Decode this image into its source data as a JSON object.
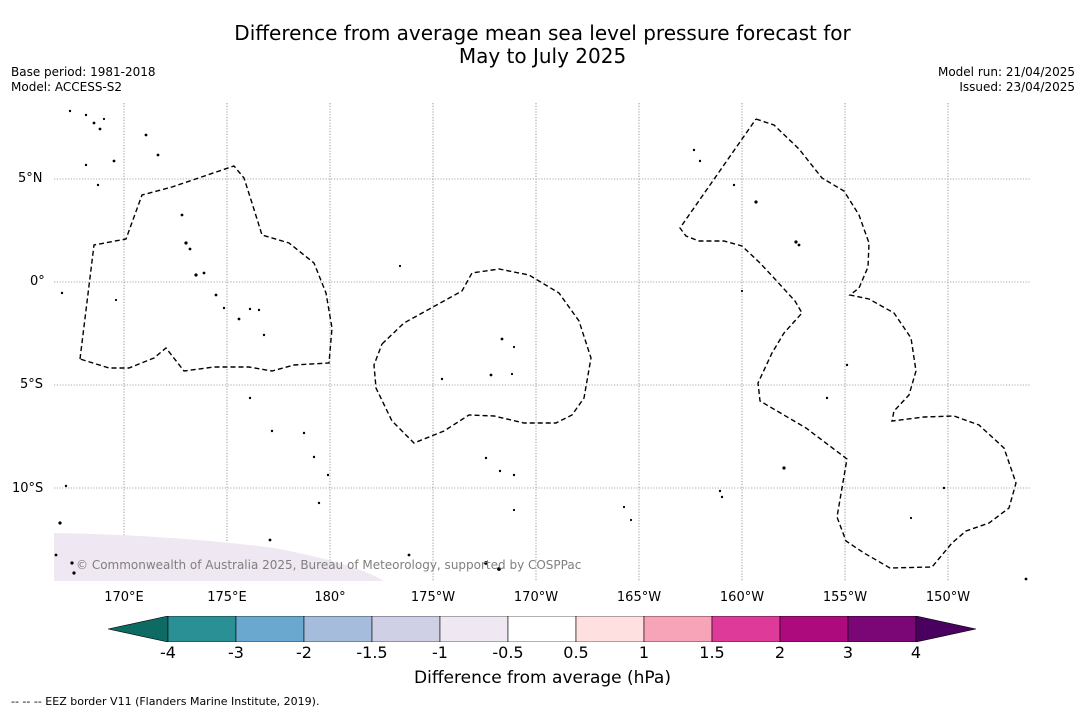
{
  "title_line1": "Difference from average mean sea level pressure forecast for",
  "title_line2": "May to July 2025",
  "base_period": "Base period: 1981-2018",
  "model": "Model: ACCESS-S2",
  "model_run": "Model run: 21/04/2025",
  "issued": "Issued: 23/04/2025",
  "lat_labels": [
    "5°N",
    "0°",
    "5°S",
    "10°S"
  ],
  "lon_labels": [
    "170°E",
    "175°E",
    "180°",
    "175°W",
    "170°W",
    "165°W",
    "160°W",
    "155°W",
    "150°W"
  ],
  "copyright": "© Commonwealth of Australia 2025, Bureau of Meteorology, supported by COSPPac",
  "colorbar": {
    "label": "Difference from average (hPa)",
    "ticks": [
      "-4",
      "-3",
      "-2",
      "-1.5",
      "-1",
      "-0.5",
      "0.5",
      "1",
      "1.5",
      "2",
      "3",
      "4"
    ],
    "colors": [
      "#0e6b63",
      "#2b8f96",
      "#6aa8d0",
      "#a6bcdc",
      "#cfd0e6",
      "#efe8f2",
      "#ffffff",
      "#fde0df",
      "#f7a3b8",
      "#dd3a9a",
      "#ac0a7d",
      "#7b0675",
      "#4a005f"
    ]
  },
  "footer": "--  --  -- EEZ border V11 (Flanders Marine Institute, 2019)."
}
